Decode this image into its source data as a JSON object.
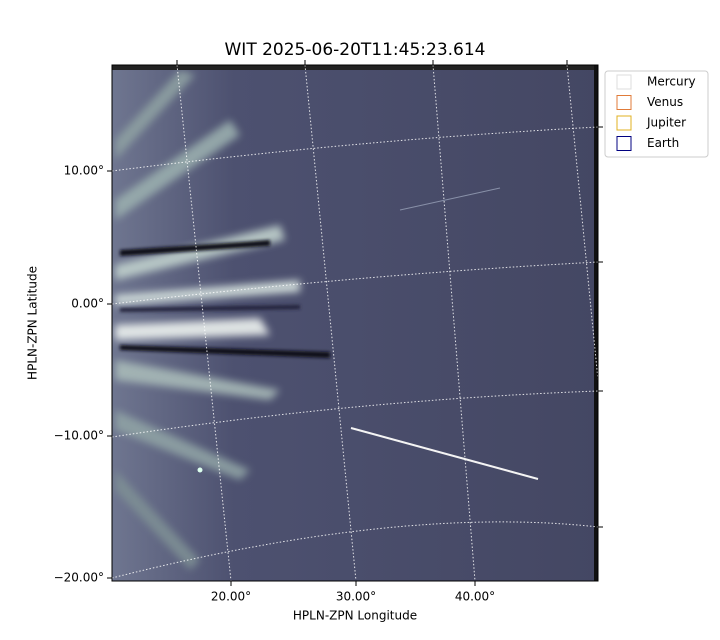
{
  "title": "WIT 2025-06-20T11:45:23.614",
  "x_axis": {
    "label": "HPLN-ZPN Longitude",
    "ticks": [
      "20.00°",
      "30.00°",
      "40.00°"
    ]
  },
  "y_axis": {
    "label": "HPLN-ZPN Latitude",
    "ticks": [
      "10.00°",
      "0.00°",
      "−10.00°",
      "−20.00°"
    ]
  },
  "legend": [
    {
      "name": "Mercury",
      "color": "#dddddd"
    },
    {
      "name": "Venus",
      "color": "#e07b39"
    },
    {
      "name": "Jupiter",
      "color": "#e0b020"
    },
    {
      "name": "Earth",
      "color": "#000080"
    }
  ]
}
